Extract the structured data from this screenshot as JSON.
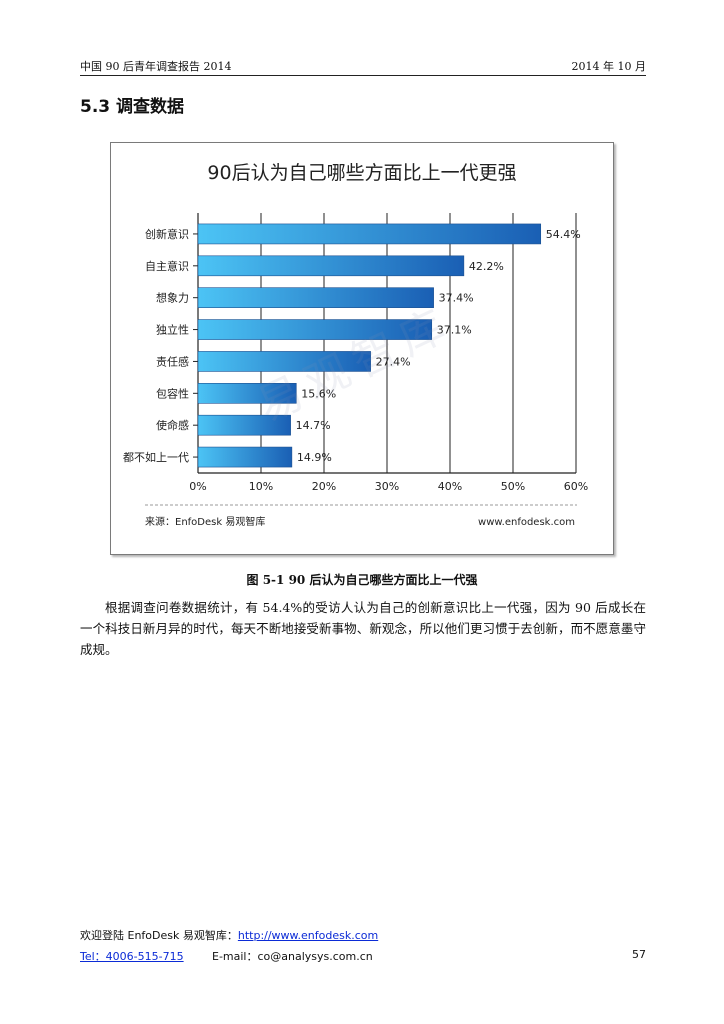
{
  "header": {
    "left": "中国 90 后青年调查报告 2014",
    "right": "2014 年 10 月"
  },
  "section": {
    "title": "5.3  调查数据"
  },
  "chart_data": {
    "type": "bar",
    "orientation": "horizontal",
    "title": "90后认为自己哪些方面比上一代更强",
    "categories": [
      "创新意识",
      "自主意识",
      "想象力",
      "独立性",
      "责任感",
      "包容性",
      "使命感",
      "都不如上一代"
    ],
    "values": [
      54.4,
      42.2,
      37.4,
      37.1,
      27.4,
      15.6,
      14.7,
      14.9
    ],
    "value_labels": [
      "54.4%",
      "42.2%",
      "37.4%",
      "37.1%",
      "27.4%",
      "15.6%",
      "14.7%",
      "14.9%"
    ],
    "x_ticks": [
      "0%",
      "10%",
      "20%",
      "30%",
      "40%",
      "50%",
      "60%"
    ],
    "xlim": [
      0,
      60
    ],
    "grid": true,
    "source": "来源：EnfoDesk 易观智库",
    "site": "www.enfodesk.com",
    "bar_color_light": "#4cc4f5",
    "bar_color_dark": "#1a5fb4",
    "watermark": "易观智库"
  },
  "figure": {
    "caption": "图  5-1    90 后认为自己哪些方面比上一代强"
  },
  "body": {
    "paragraph": "根据调查问卷数据统计，有 54.4%的受访人认为自己的创新意识比上一代强，因为 90 后成长在一个科技日新月异的时代，每天不断地接受新事物、新观念，所以他们更习惯于去创新，而不愿意墨守成规。"
  },
  "footer": {
    "welcome": "欢迎登陆 EnfoDesk  易观智库：",
    "url": "http://www.enfodesk.com",
    "tel": "Tel：4006-515-715",
    "email": "E-mail：co@analysys.com.cn",
    "page": "57"
  }
}
